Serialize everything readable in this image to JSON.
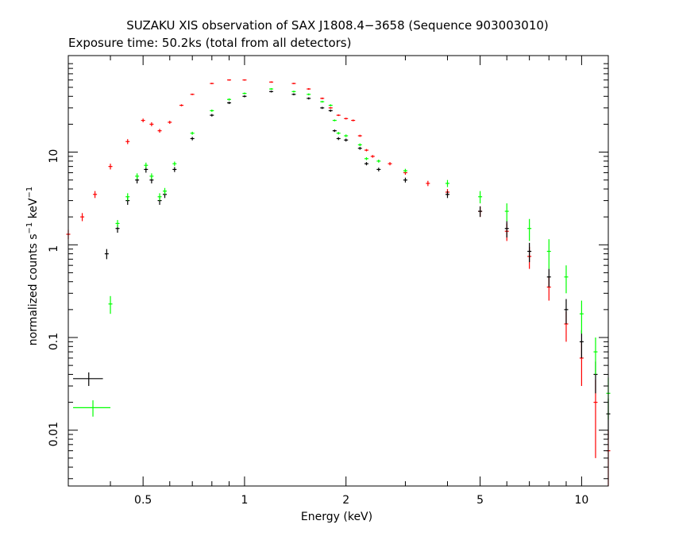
{
  "chart_data": {
    "type": "scatter",
    "title": "SUZAKU XIS observation of SAX J1808.4−3658 (Sequence 903003010)",
    "subtitle": "Exposure time: 50.2ks (total from all detectors)",
    "xlabel": "Energy (keV)",
    "ylabel_base": "normalized counts s",
    "ylabel_sup1": "−1",
    "ylabel_mid": " keV",
    "ylabel_sup2": "−1",
    "xscale": "log",
    "yscale": "log",
    "xlim": [
      0.3,
      12.0
    ],
    "ylim": [
      0.0025,
      110
    ],
    "x_ticks": [
      {
        "value": 0.5,
        "label": "0.5"
      },
      {
        "value": 1,
        "label": "1"
      },
      {
        "value": 2,
        "label": "2"
      },
      {
        "value": 5,
        "label": "5"
      },
      {
        "value": 10,
        "label": "10"
      }
    ],
    "y_ticks": [
      {
        "value": 0.01,
        "label": "0.01"
      },
      {
        "value": 0.1,
        "label": "0.1"
      },
      {
        "value": 1,
        "label": "1"
      },
      {
        "value": 10,
        "label": "10"
      }
    ],
    "grid": false,
    "series": [
      {
        "color": "#ff0000",
        "x": [
          0.3,
          0.33,
          0.36,
          0.4,
          0.45,
          0.5,
          0.53,
          0.56,
          0.6,
          0.65,
          0.7,
          0.8,
          0.9,
          1.0,
          1.2,
          1.4,
          1.55,
          1.7,
          1.8,
          1.9,
          2.0,
          2.1,
          2.2,
          2.3,
          2.4,
          2.7,
          3.0,
          3.5,
          4.0,
          5.0,
          6.0,
          7.0,
          8.0,
          9.0,
          10.0,
          11.0,
          12.0
        ],
        "y": [
          1.3,
          2.0,
          3.5,
          7.0,
          13.0,
          22.0,
          20.0,
          17.0,
          21.0,
          32.0,
          42.0,
          55.0,
          60.0,
          60.0,
          57.0,
          55.0,
          48.0,
          38.0,
          30.0,
          25.0,
          23.0,
          22.0,
          15.0,
          10.5,
          9.0,
          7.5,
          6.0,
          4.6,
          3.7,
          2.3,
          1.4,
          0.75,
          0.35,
          0.14,
          0.06,
          0.02,
          0.006
        ],
        "yerr": [
          0.15,
          0.2,
          0.3,
          0.5,
          0.8,
          1.0,
          1.0,
          0.8,
          0.8,
          0.8,
          0.8,
          1.0,
          1.0,
          1.0,
          1.0,
          1.0,
          1.0,
          0.8,
          0.6,
          0.5,
          0.5,
          0.5,
          0.4,
          0.3,
          0.3,
          0.3,
          0.3,
          0.3,
          0.3,
          0.3,
          0.3,
          0.2,
          0.1,
          0.05,
          0.03,
          0.015,
          0.004
        ]
      },
      {
        "color": "#000000",
        "x": [
          0.39,
          0.42,
          0.45,
          0.48,
          0.51,
          0.53,
          0.56,
          0.58,
          0.62,
          0.7,
          0.8,
          0.9,
          1.0,
          1.2,
          1.4,
          1.55,
          1.7,
          1.8,
          1.85,
          1.9,
          2.0,
          2.2,
          2.3,
          2.5,
          3.0,
          4.0,
          5.0,
          6.0,
          7.0,
          8.0,
          9.0,
          10.0,
          11.0,
          12.0
        ],
        "y": [
          0.8,
          1.5,
          3.0,
          5.0,
          6.5,
          5.0,
          3.0,
          3.5,
          6.5,
          14.0,
          25.0,
          34.0,
          40.0,
          45.0,
          42.0,
          38.0,
          30.0,
          28.0,
          17.0,
          14.0,
          13.5,
          11.0,
          7.5,
          6.5,
          5.0,
          3.5,
          2.3,
          1.5,
          0.85,
          0.45,
          0.2,
          0.09,
          0.04,
          0.015
        ],
        "yerr": [
          0.1,
          0.15,
          0.3,
          0.4,
          0.5,
          0.4,
          0.3,
          0.3,
          0.4,
          0.6,
          0.8,
          1.0,
          1.0,
          1.0,
          1.0,
          1.0,
          0.8,
          0.8,
          0.5,
          0.5,
          0.5,
          0.4,
          0.3,
          0.3,
          0.3,
          0.3,
          0.3,
          0.3,
          0.2,
          0.1,
          0.06,
          0.03,
          0.015,
          0.007
        ]
      },
      {
        "color": "#00ff00",
        "x": [
          0.4,
          0.42,
          0.45,
          0.48,
          0.51,
          0.53,
          0.56,
          0.58,
          0.62,
          0.7,
          0.8,
          0.9,
          1.0,
          1.2,
          1.4,
          1.55,
          1.7,
          1.8,
          1.85,
          1.9,
          2.0,
          2.2,
          2.3,
          2.5,
          3.0,
          4.0,
          5.0,
          6.0,
          7.0,
          8.0,
          9.0,
          10.0,
          11.0,
          12.0
        ],
        "y": [
          0.23,
          1.7,
          3.3,
          5.5,
          7.2,
          5.5,
          3.3,
          3.8,
          7.5,
          16.0,
          28.0,
          37.0,
          43.0,
          48.0,
          45.0,
          42.0,
          35.0,
          32.0,
          22.0,
          16.0,
          15.0,
          12.0,
          8.5,
          8.0,
          6.3,
          4.6,
          3.3,
          2.3,
          1.5,
          0.85,
          0.45,
          0.18,
          0.07,
          0.025
        ],
        "yerr": [
          0.05,
          0.15,
          0.3,
          0.4,
          0.5,
          0.4,
          0.3,
          0.3,
          0.4,
          0.6,
          0.8,
          1.0,
          1.0,
          1.0,
          1.0,
          1.0,
          0.8,
          0.8,
          0.5,
          0.5,
          0.5,
          0.4,
          0.3,
          0.3,
          0.3,
          0.4,
          0.5,
          0.5,
          0.4,
          0.3,
          0.15,
          0.07,
          0.03,
          0.012
        ]
      },
      {
        "color": "#000000",
        "x": [
          0.345
        ],
        "xerr": [
          0.035
        ],
        "y": [
          0.036
        ],
        "yerr": [
          0.006
        ]
      },
      {
        "color": "#00ff00",
        "x": [
          0.355
        ],
        "xerr": [
          0.045
        ],
        "y": [
          0.0175
        ],
        "yerr": [
          0.0035
        ]
      }
    ]
  }
}
